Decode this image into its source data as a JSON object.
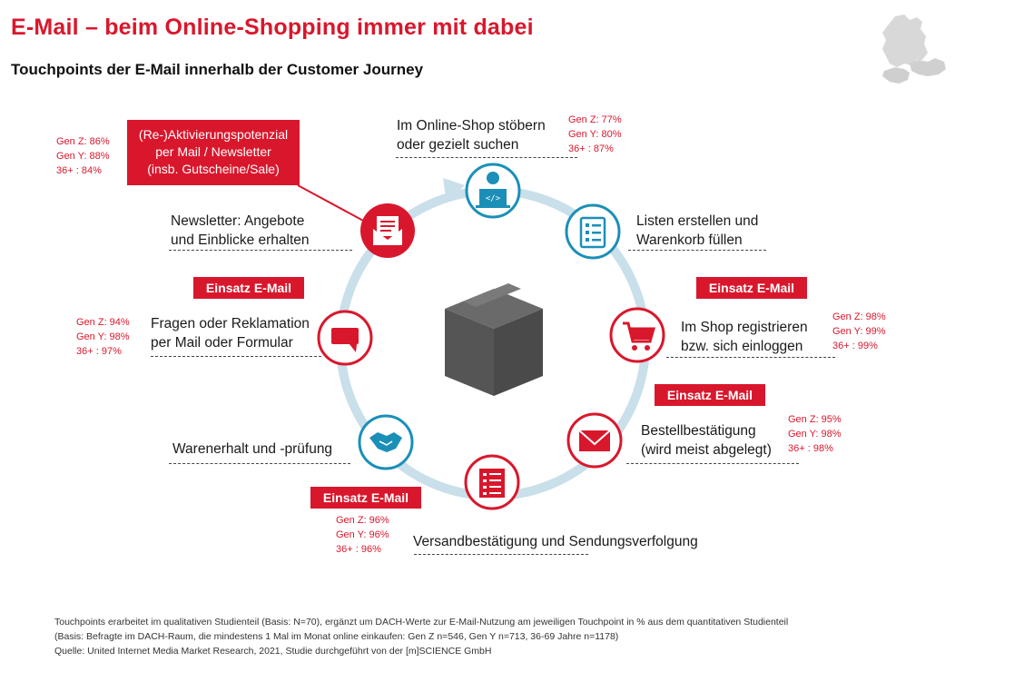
{
  "title": "E-Mail – beim Online-Shopping immer mit dabei",
  "subtitle": "Touchpoints der E-Mail innerhalb der Customer Journey",
  "colors": {
    "accent": "#d9172c",
    "ring": "#c9dfea",
    "box": "#555555",
    "icon_blue": "#1b8fb8"
  },
  "reactivation": {
    "line1": "(Re-)Aktivierungspotenzial",
    "line2": "per Mail / Newsletter",
    "line3": "(insb. Gutscheine/Sale)",
    "stats": [
      "Gen Z: 86%",
      "Gen Y: 88%",
      "36+    : 84%"
    ]
  },
  "touchpoints": {
    "browse": {
      "line1": "Im Online-Shop stöbern",
      "line2": "oder gezielt suchen",
      "icon": "person-laptop-icon",
      "stats": [
        "Gen Z: 77%",
        "Gen Y: 80%",
        "36+    : 87%"
      ]
    },
    "list": {
      "line1": "Listen erstellen und",
      "line2": "Warenkorb füllen",
      "icon": "checklist-icon"
    },
    "register": {
      "line1": "Im Shop registrieren",
      "line2": "bzw. sich einloggen",
      "icon": "shopping-cart-icon",
      "badge": "Einsatz E-Mail",
      "stats": [
        "Gen Z: 98%",
        "Gen Y: 99%",
        "36+    : 99%"
      ]
    },
    "confirmation": {
      "line1": "Bestellbestätigung",
      "line2": "(wird meist abgelegt)",
      "icon": "envelope-icon",
      "badge": "Einsatz E-Mail",
      "stats": [
        "Gen Z: 95%",
        "Gen Y: 98%",
        "36+    : 98%"
      ]
    },
    "shipping": {
      "line1": "Versandbestätigung und Sendungsverfolgung",
      "icon": "shipping-form-icon",
      "badge": "Einsatz E-Mail",
      "stats": [
        "Gen Z: 96%",
        "Gen Y: 96%",
        "36+    : 96%"
      ]
    },
    "receipt": {
      "line1": "Warenerhalt und -prüfung",
      "icon": "handshake-icon"
    },
    "complaint": {
      "line1": "Fragen oder Reklamation",
      "line2": "per Mail oder Formular",
      "icon": "chat-bubble-icon",
      "badge": "Einsatz E-Mail",
      "stats": [
        "Gen Z: 94%",
        "Gen Y: 98%",
        "36+    : 97%"
      ]
    },
    "newsletter": {
      "line1": "Newsletter: Angebote",
      "line2": "und Einblicke erhalten",
      "icon": "newsletter-icon"
    }
  },
  "footer": {
    "line1": "Touchpoints erarbeitet im qualitativen Studienteil (Basis: N=70), ergänzt um DACH-Werte zur E-Mail-Nutzung am jeweiligen Touchpoint in % aus dem quantitativen Studienteil",
    "line2": "(Basis: Befragte im DACH-Raum, die mindestens 1 Mal im Monat online einkaufen: Gen Z n=546, Gen Y n=713, 36-69 Jahre n=1178)",
    "line3": "Quelle: United Internet Media Market Research, 2021, Studie durchgeführt von der [m]SCIENCE GmbH"
  }
}
